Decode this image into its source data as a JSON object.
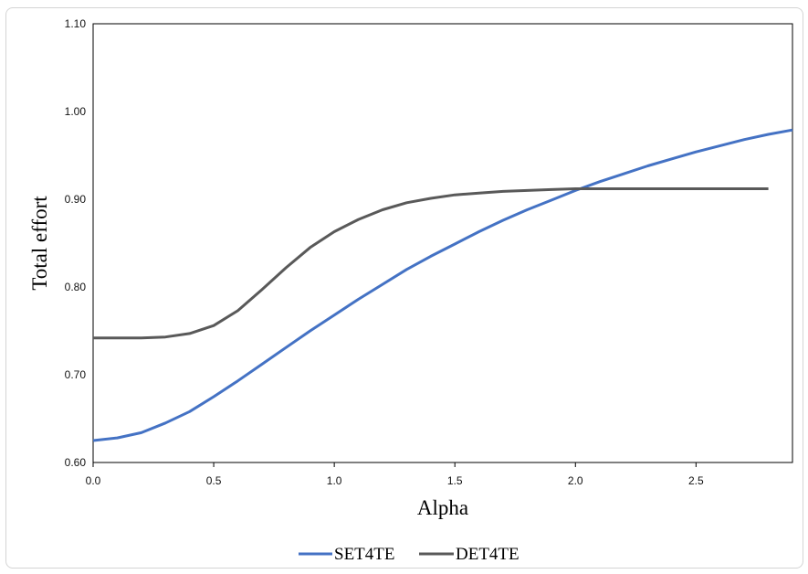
{
  "chart_data": {
    "type": "line",
    "xlabel": "Alpha",
    "ylabel": "Total effort",
    "xlim": [
      0,
      2.9
    ],
    "ylim": [
      0.6,
      1.1
    ],
    "x_ticks": [
      "0.0",
      "0.5",
      "1.0",
      "1.5",
      "2.0",
      "2.5"
    ],
    "y_ticks": [
      "0.60",
      "0.70",
      "0.80",
      "0.90",
      "1.00",
      "1.10"
    ],
    "grid": false,
    "legend_position": "bottom-center",
    "series": [
      {
        "name": "SET4TE",
        "color": "#4472C4",
        "x": [
          0,
          0.1,
          0.2,
          0.3,
          0.4,
          0.5,
          0.6,
          0.7,
          0.8,
          0.9,
          1.0,
          1.1,
          1.2,
          1.3,
          1.4,
          1.5,
          1.6,
          1.7,
          1.8,
          1.9,
          2.0,
          2.1,
          2.2,
          2.3,
          2.4,
          2.5,
          2.6,
          2.7,
          2.8,
          2.9
        ],
        "values": [
          0.625,
          0.628,
          0.634,
          0.645,
          0.658,
          0.675,
          0.693,
          0.712,
          0.731,
          0.75,
          0.768,
          0.786,
          0.803,
          0.82,
          0.835,
          0.849,
          0.863,
          0.876,
          0.888,
          0.899,
          0.91,
          0.92,
          0.929,
          0.938,
          0.946,
          0.954,
          0.961,
          0.968,
          0.974,
          0.979
        ]
      },
      {
        "name": "DET4TE",
        "color": "#595959",
        "x": [
          0,
          0.1,
          0.2,
          0.3,
          0.4,
          0.5,
          0.6,
          0.7,
          0.8,
          0.9,
          1.0,
          1.1,
          1.2,
          1.3,
          1.4,
          1.5,
          1.6,
          1.7,
          1.8,
          1.9,
          2.0,
          2.1,
          2.2,
          2.3,
          2.4,
          2.5,
          2.6,
          2.7,
          2.8
        ],
        "values": [
          0.742,
          0.742,
          0.742,
          0.743,
          0.747,
          0.756,
          0.773,
          0.797,
          0.822,
          0.845,
          0.863,
          0.877,
          0.888,
          0.896,
          0.901,
          0.905,
          0.907,
          0.909,
          0.91,
          0.911,
          0.912,
          0.912,
          0.912,
          0.912,
          0.912,
          0.912,
          0.912,
          0.912,
          0.912
        ]
      }
    ]
  }
}
